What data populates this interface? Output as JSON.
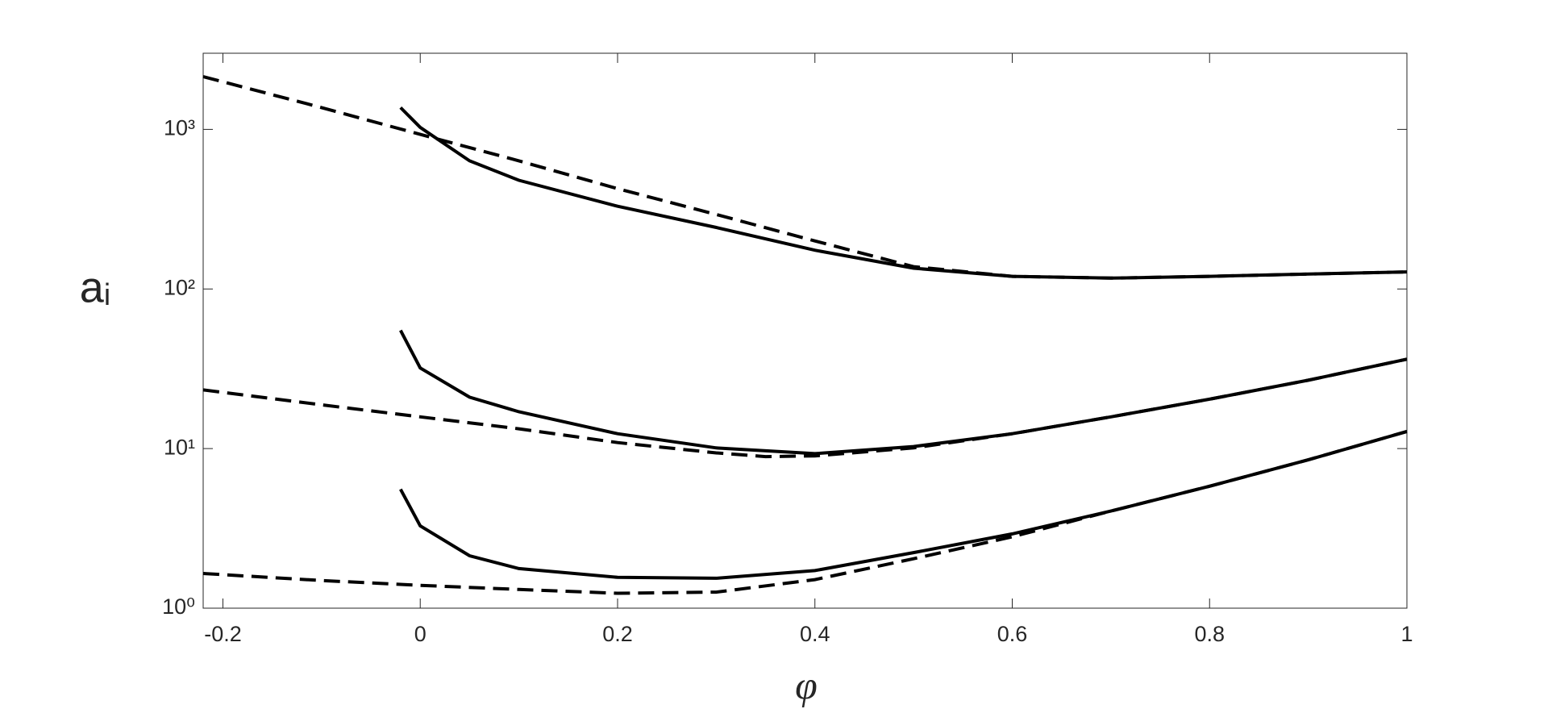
{
  "chart_data": {
    "type": "line",
    "xlabel": "φ",
    "ylabel": "aᵢ",
    "xlim": [
      -0.22,
      1
    ],
    "ylim": [
      1,
      3000
    ],
    "log_y": true,
    "xticks": [
      -0.2,
      0,
      0.2,
      0.4,
      0.6,
      0.8,
      1
    ],
    "yticks": [
      {
        "value": 1,
        "label": "10⁰"
      },
      {
        "value": 10,
        "label": "10¹"
      },
      {
        "value": 100,
        "label": "10²"
      },
      {
        "value": 1000,
        "label": "10³"
      }
    ],
    "series": [
      {
        "color": "#000000",
        "style": "solid",
        "x": [
          -0.02,
          0,
          0.05,
          0.1,
          0.2,
          0.3,
          0.4,
          0.5,
          0.6,
          0.7,
          0.8,
          0.9,
          1.0
        ],
        "values": [
          1370,
          1030,
          635,
          480,
          330,
          243,
          175,
          135,
          120,
          117,
          120,
          124,
          128
        ]
      },
      {
        "color": "#000000",
        "style": "dashed",
        "x": [
          -0.22,
          -0.1,
          0,
          0.1,
          0.2,
          0.3,
          0.4,
          0.5,
          0.6,
          0.7,
          0.8,
          0.9,
          1.0
        ],
        "values": [
          2140,
          1370,
          930,
          635,
          425,
          293,
          200,
          138,
          120,
          117,
          120,
          124,
          128
        ]
      },
      {
        "color": "#000000",
        "style": "solid",
        "x": [
          -0.02,
          0,
          0.05,
          0.1,
          0.2,
          0.3,
          0.4,
          0.5,
          0.6,
          0.7,
          0.8,
          0.9,
          1.0
        ],
        "values": [
          55,
          32,
          21,
          17,
          12.4,
          10.1,
          9.3,
          10.3,
          12.4,
          15.8,
          20.4,
          26.8,
          36.3
        ]
      },
      {
        "color": "#000000",
        "style": "dashed",
        "x": [
          -0.22,
          -0.1,
          0,
          0.1,
          0.2,
          0.3,
          0.35,
          0.4,
          0.5,
          0.6,
          0.7,
          0.8,
          0.9,
          1.0
        ],
        "values": [
          23.3,
          18.8,
          15.8,
          13.3,
          10.9,
          9.4,
          8.9,
          9.0,
          10.1,
          12.4,
          15.8,
          20.4,
          26.8,
          36.3
        ]
      },
      {
        "color": "#000000",
        "style": "solid",
        "x": [
          -0.02,
          0,
          0.05,
          0.1,
          0.2,
          0.3,
          0.4,
          0.5,
          0.6,
          0.7,
          0.8,
          0.9,
          1.0
        ],
        "values": [
          5.56,
          3.28,
          2.13,
          1.77,
          1.56,
          1.54,
          1.72,
          2.23,
          2.92,
          4.06,
          5.81,
          8.5,
          12.8
        ]
      },
      {
        "color": "#000000",
        "style": "dashed",
        "x": [
          -0.22,
          -0.1,
          0,
          0.1,
          0.2,
          0.3,
          0.4,
          0.5,
          0.6,
          0.7,
          0.8,
          0.9,
          1.0
        ],
        "values": [
          1.65,
          1.49,
          1.39,
          1.31,
          1.24,
          1.26,
          1.51,
          2.04,
          2.8,
          4.06,
          5.81,
          8.5,
          12.8
        ]
      }
    ]
  }
}
